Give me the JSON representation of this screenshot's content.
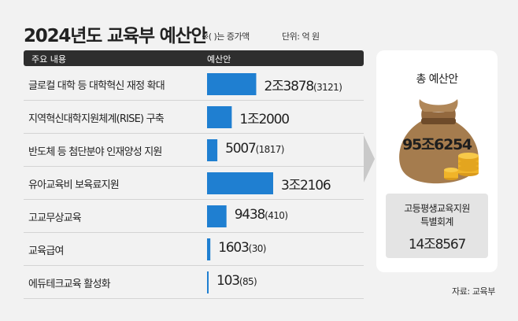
{
  "header": {
    "title": "2024년도 교육부 예산안",
    "note": "※( )는 증가액",
    "unit": "단위: 억 원",
    "col1": "주요 내용",
    "col2": "예산안"
  },
  "chart_data": {
    "type": "bar",
    "orientation": "horizontal",
    "title": "2024년도 교육부 예산안",
    "unit": "억 원",
    "categories": [
      "글로컬 대학 등 대학혁신 재정 확대",
      "지역혁신대학지원체계(RISE) 구축",
      "반도체 등 첨단분야 인재양성 지원",
      "유아교육비 보육료지원",
      "고교무상교육",
      "교육급여",
      "에듀테크교육 활성화"
    ],
    "values": [
      23878,
      12000,
      5007,
      32106,
      9438,
      1603,
      103
    ],
    "value_labels": [
      "2조3878",
      "1조2000",
      "5007",
      "3조2106",
      "9438",
      "1603",
      "103"
    ],
    "increases": [
      3121,
      null,
      1817,
      null,
      410,
      30,
      85
    ],
    "increase_labels": [
      "(3121)",
      "",
      "(1817)",
      "",
      "(410)",
      "(30)",
      "(85)"
    ],
    "bar_color": "#1f7fd1",
    "xlim": [
      0,
      32106
    ]
  },
  "summary": {
    "label": "총 예산안",
    "amount": "95조6254",
    "special_line1": "고등평생교육지원",
    "special_line2": "특별회계",
    "special_amount": "14조8567"
  },
  "source": "자료: 교육부",
  "colors": {
    "background": "#f2f2f2",
    "header_bar": "#2e2e2e",
    "bag": "#a57c4e",
    "coin": "#f0b429"
  }
}
